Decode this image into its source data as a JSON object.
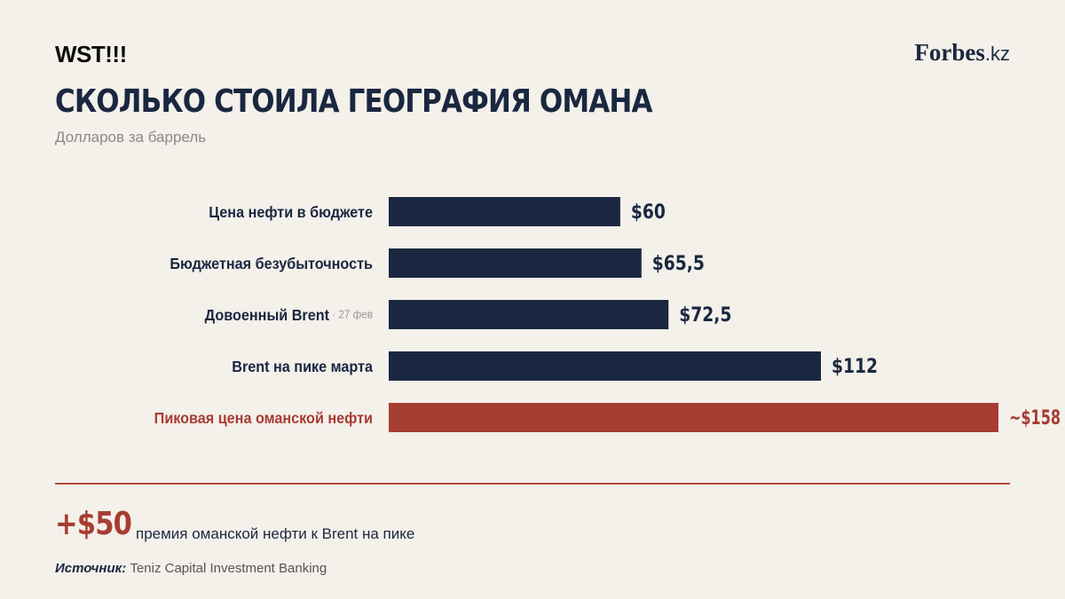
{
  "header": {
    "brand_left": "WST!!!",
    "brand_right_main": "Forbes",
    "brand_right_suffix": ".kz"
  },
  "title": "СКОЛЬКО СТОИЛА ГЕОГРАФИЯ ОМАНА",
  "subtitle": "Долларов за баррель",
  "colors": {
    "navy": "#1a2740",
    "accent_red": "#a63d32",
    "muted": "#8a8a8a"
  },
  "chart_data": {
    "type": "bar",
    "orientation": "horizontal",
    "title": "СКОЛЬКО СТОИЛА ГЕОГРАФИЯ ОМАНА",
    "subtitle": "Долларов за баррель",
    "xlim": [
      0,
      158
    ],
    "grid": false,
    "categories": [
      "Цена нефти в бюджете",
      "Бюджетная безубыточность",
      "Довоенный Brent",
      "Brent на пике марта",
      "Пиковая цена оманской нефти"
    ],
    "category_notes": [
      "",
      "",
      "· 27 фев",
      "",
      ""
    ],
    "values": [
      60,
      65.5,
      72.5,
      112,
      158
    ],
    "value_labels": [
      "$60",
      "$65,5",
      "$72,5",
      "$112",
      "~$158"
    ],
    "highlight": [
      false,
      false,
      false,
      false,
      true
    ]
  },
  "footer": {
    "premium_value": "+$50",
    "premium_text": "премия оманской нефти к Brent на пике",
    "source_label": "Источник:",
    "source_text": "Teniz Capital Investment Banking"
  }
}
